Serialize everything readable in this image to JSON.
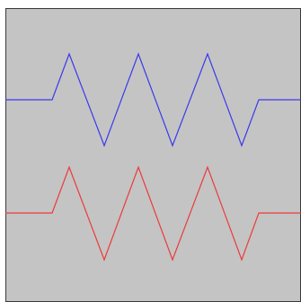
{
  "canvas": {
    "background": "#c4c4c4",
    "border": "#3a3a3a"
  },
  "waves": [
    {
      "id": "blue-zigzag",
      "color": "#3a3aee"
    },
    {
      "id": "red-zigzag",
      "color": "#ee3a3a"
    }
  ]
}
